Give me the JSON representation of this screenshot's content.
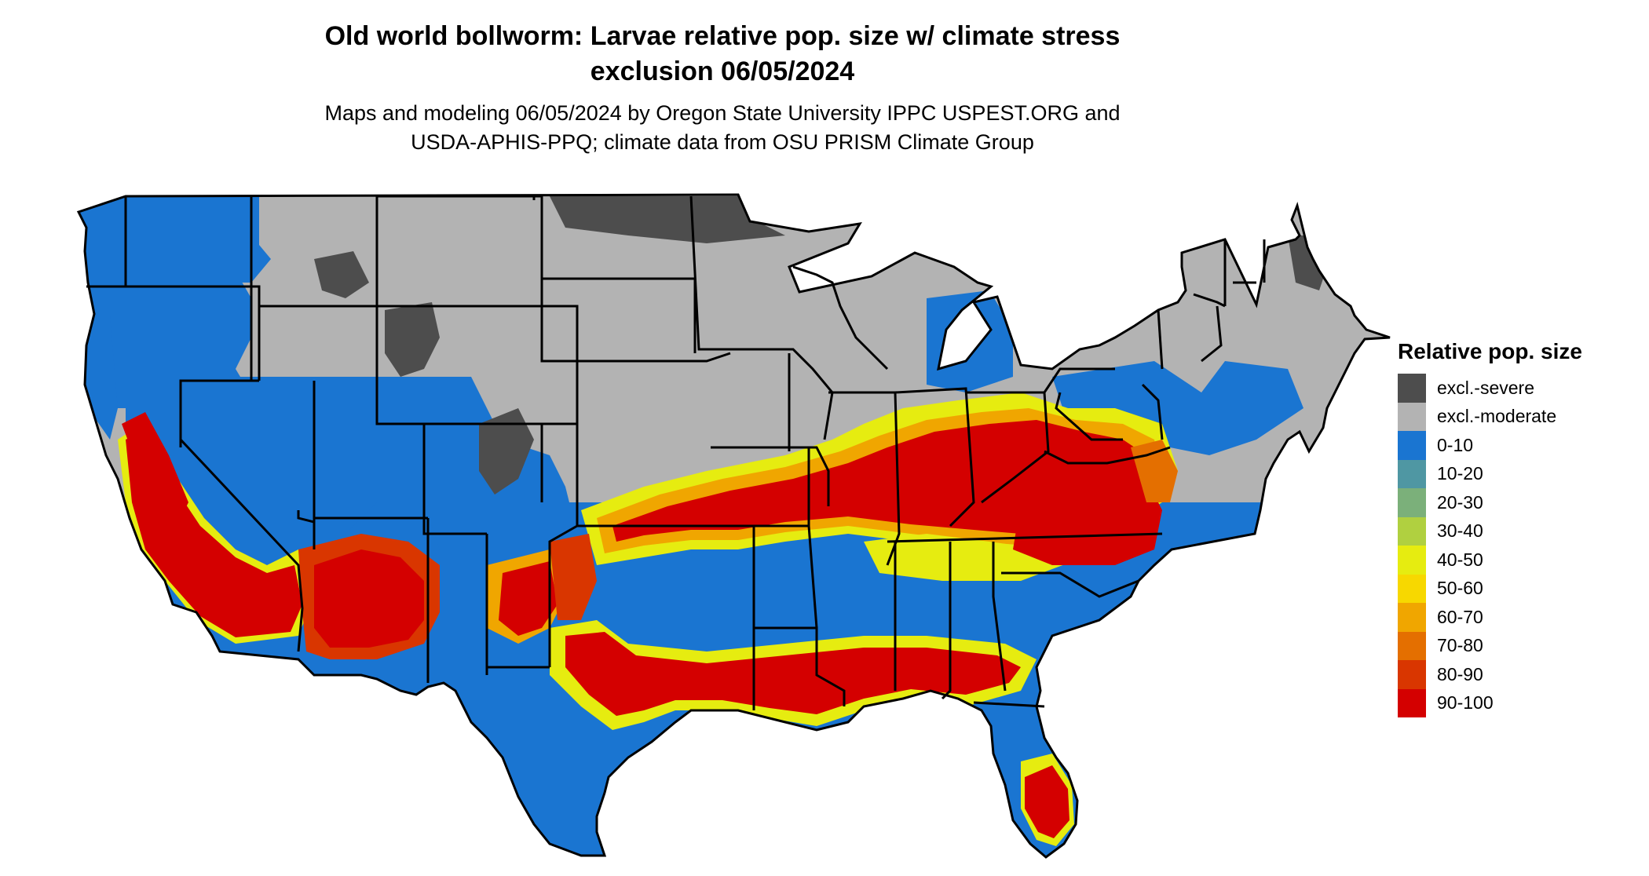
{
  "title_line1": "Old world bollworm: Larvae relative pop. size w/ climate stress",
  "title_line2": "exclusion 06/05/2024",
  "subtitle_line1": "Maps and modeling 06/05/2024 by Oregon State University IPPC USPEST.ORG and",
  "subtitle_line2": "USDA-APHIS-PPQ; climate data from OSU PRISM Climate Group",
  "legend": {
    "title": "Relative pop. size",
    "items": [
      {
        "label": "excl.-severe",
        "color": "#4d4d4d"
      },
      {
        "label": "excl.-moderate",
        "color": "#b3b3b3"
      },
      {
        "label": "0-10",
        "color": "#1a75d1"
      },
      {
        "label": "10-20",
        "color": "#4f97a3"
      },
      {
        "label": "20-30",
        "color": "#7bb07a"
      },
      {
        "label": "30-40",
        "color": "#b0d040"
      },
      {
        "label": "40-50",
        "color": "#e6ec10"
      },
      {
        "label": "50-60",
        "color": "#f7d800"
      },
      {
        "label": "60-70",
        "color": "#f0a600"
      },
      {
        "label": "70-80",
        "color": "#e46f00"
      },
      {
        "label": "80-90",
        "color": "#d93600"
      },
      {
        "label": "90-100",
        "color": "#d40000"
      }
    ]
  }
}
